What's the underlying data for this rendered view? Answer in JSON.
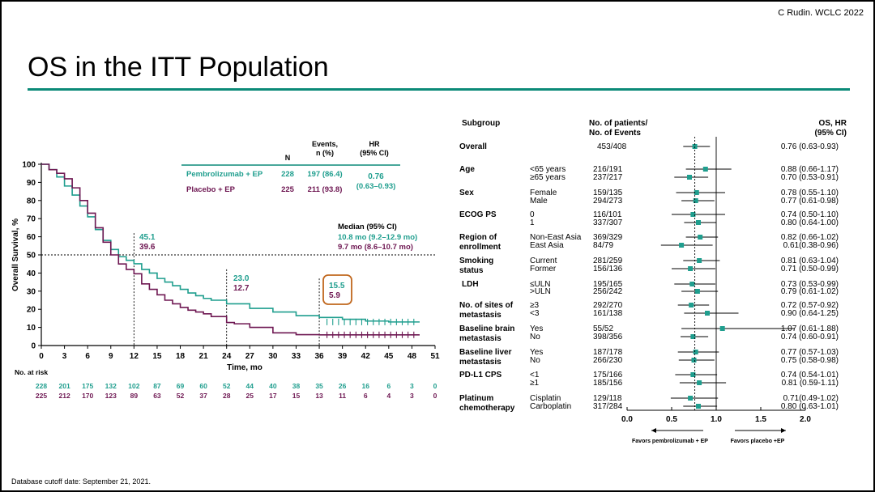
{
  "slide": {
    "credit": "C Rudin.  WCLC  2022",
    "title": "OS in the ITT Population",
    "footnote": "Database cutoff  date: September  21, 2021."
  },
  "colors": {
    "pembro": "#1f9e8e",
    "placebo": "#6e1752",
    "accent_rule": "#0b8a78",
    "callout_box": "#c0671d"
  },
  "km": {
    "ylabel": "Overall Survival, %",
    "xlabel": "Time, mo",
    "table_header": {
      "n": "N",
      "events": "Events,\nn (%)",
      "hr": "HR\n(95% CI)"
    },
    "arms": [
      {
        "name": "Pembrolizumab + EP",
        "n": "228",
        "events": "197 (86.4)",
        "color": "pembro"
      },
      {
        "name": "Placebo + EP",
        "n": "225",
        "events": "211 (93.8)",
        "color": "placebo"
      }
    ],
    "hr": "0.76",
    "hr_ci": "(0.63–0.93)",
    "median_title": "Median (95% CI)",
    "median_pembro": "10.8 mo (9.2–12.9 mo)",
    "median_placebo": "9.7 mo (8.6–10.7 mo)",
    "landmarks": [
      {
        "month": 12,
        "pembro": "45.1",
        "placebo": "39.6"
      },
      {
        "month": 24,
        "pembro": "23.0",
        "placebo": "12.7"
      },
      {
        "month": 36,
        "pembro": "15.5",
        "placebo": "5.9"
      }
    ],
    "risk_label": "No. at risk",
    "at_risk_pembro": [
      "228",
      "201",
      "175",
      "132",
      "102",
      "87",
      "69",
      "60",
      "52",
      "44",
      "40",
      "38",
      "35",
      "26",
      "16",
      "6",
      "3",
      "0"
    ],
    "at_risk_placebo": [
      "225",
      "212",
      "170",
      "123",
      "89",
      "63",
      "52",
      "37",
      "28",
      "25",
      "17",
      "15",
      "13",
      "11",
      "6",
      "4",
      "3",
      "0"
    ]
  },
  "forest": {
    "col_subgroup": "Subgroup",
    "col_n": "No. of patients/\nNo. of Events",
    "col_hr": "OS, HR\n(95% CI)",
    "favors_left": "Favors pembrolizumab + EP",
    "favors_right": "Favors placebo +EP",
    "x_ticks": [
      "0.0",
      "0.5",
      "1.0",
      "1.5",
      "2.0"
    ]
  },
  "chart_data": [
    {
      "type": "line",
      "title": "",
      "xlabel": "Time, mo",
      "ylabel": "Overall Survival, %",
      "xlim": [
        0,
        51
      ],
      "ylim": [
        0,
        100
      ],
      "x_ticks": [
        0,
        3,
        6,
        9,
        12,
        15,
        18,
        21,
        24,
        27,
        30,
        33,
        36,
        39,
        42,
        45,
        48,
        51
      ],
      "y_ticks": [
        0,
        10,
        20,
        30,
        40,
        50,
        60,
        70,
        80,
        90,
        100
      ],
      "grid": false,
      "series": [
        {
          "name": "Pembrolizumab + EP",
          "x": [
            0,
            1,
            2,
            3,
            4,
            5,
            6,
            7,
            8,
            9,
            10,
            11,
            12,
            13,
            14,
            15,
            16,
            17,
            18,
            19,
            20,
            21,
            22,
            24,
            27,
            30,
            33,
            36,
            39,
            42,
            45,
            48,
            49
          ],
          "y": [
            100,
            97,
            93,
            88,
            83,
            77,
            71,
            64,
            58,
            53,
            49,
            47,
            45.1,
            42,
            40,
            37,
            35,
            33,
            31,
            29,
            27.5,
            26,
            25,
            23,
            20.5,
            18.5,
            16.5,
            15.5,
            14.5,
            13.5,
            13,
            13,
            13
          ]
        },
        {
          "name": "Placebo + EP",
          "x": [
            0,
            1,
            2,
            3,
            4,
            5,
            6,
            7,
            8,
            9,
            10,
            11,
            12,
            13,
            14,
            15,
            16,
            17,
            18,
            19,
            20,
            21,
            22,
            24,
            25,
            27,
            30,
            33,
            36,
            39,
            42,
            45,
            48,
            49
          ],
          "y": [
            100,
            97,
            95,
            92,
            87,
            80,
            73,
            65,
            57,
            50,
            45,
            42,
            39.6,
            34,
            31,
            28,
            25,
            23,
            21,
            19.5,
            18.5,
            17.5,
            16,
            12.7,
            12,
            10,
            7,
            6,
            5.9,
            5.9,
            5.9,
            5.9,
            5.9,
            5.9
          ]
        }
      ]
    },
    {
      "type": "scatter",
      "title": "",
      "xlabel": "",
      "xlim": [
        0,
        2.0
      ],
      "reference_line": 1.0,
      "overall_hr": 0.76,
      "rows": [
        {
          "group": "Overall",
          "level": "",
          "n": "453/408",
          "hr": 0.76,
          "lo": 0.63,
          "hi": 0.93,
          "text": "0.76 (0.63-0.93)"
        },
        {
          "group": "Age",
          "level": "<65 years",
          "n": "216/191",
          "hr": 0.88,
          "lo": 0.66,
          "hi": 1.17,
          "text": "0.88 (0.66-1.17)"
        },
        {
          "group": "",
          "level": "≥65 years",
          "n": "237/217",
          "hr": 0.7,
          "lo": 0.53,
          "hi": 0.91,
          "text": "0.70 (0.53-0.91)"
        },
        {
          "group": "Sex",
          "level": "Female",
          "n": "159/135",
          "hr": 0.78,
          "lo": 0.55,
          "hi": 1.1,
          "text": "0.78 (0.55-1.10)"
        },
        {
          "group": "",
          "level": "Male",
          "n": "294/273",
          "hr": 0.77,
          "lo": 0.61,
          "hi": 0.98,
          "text": "0.77 (0.61-0.98)"
        },
        {
          "group": "ECOG PS",
          "level": "0",
          "n": "116/101",
          "hr": 0.74,
          "lo": 0.5,
          "hi": 1.1,
          "text": "0.74 (0.50-1.10)"
        },
        {
          "group": "",
          "level": "1",
          "n": "337/307",
          "hr": 0.8,
          "lo": 0.64,
          "hi": 1.0,
          "text": "0.80 (0.64-1.00)"
        },
        {
          "group": "Region of\nenrollment",
          "level": "Non-East Asia",
          "n": "369/329",
          "hr": 0.82,
          "lo": 0.66,
          "hi": 1.02,
          "text": "0.82 (0.66-1.02)"
        },
        {
          "group": "",
          "level": "East Asia",
          "n": "84/79",
          "hr": 0.61,
          "lo": 0.38,
          "hi": 0.96,
          "text": "0.61(0.38-0.96)"
        },
        {
          "group": "Smoking\nstatus",
          "level": "Current",
          "n": "281/259",
          "hr": 0.81,
          "lo": 0.63,
          "hi": 1.04,
          "text": "0.81 (0.63-1.04)"
        },
        {
          "group": "",
          "level": "Former",
          "n": "156/136",
          "hr": 0.71,
          "lo": 0.5,
          "hi": 0.99,
          "text": "0.71 (0.50-0.99)"
        },
        {
          "group": "LDH",
          "level": "≤ULN",
          "n": "195/165",
          "hr": 0.73,
          "lo": 0.53,
          "hi": 0.99,
          "text": "0.73 (0.53-0.99)"
        },
        {
          "group": "",
          "level": ">ULN",
          "n": "256/242",
          "hr": 0.79,
          "lo": 0.61,
          "hi": 1.02,
          "text": "0.79 (0.61-1.02)"
        },
        {
          "group": "No. of sites of\nmetastasis",
          "level": "≥3",
          "n": "292/270",
          "hr": 0.72,
          "lo": 0.57,
          "hi": 0.92,
          "text": "0.72 (0.57-0.92)"
        },
        {
          "group": "",
          "level": "<3",
          "n": "161/138",
          "hr": 0.9,
          "lo": 0.64,
          "hi": 1.25,
          "text": "0.90 (0.64-1.25)"
        },
        {
          "group": "Baseline brain\nmetastasis",
          "level": "Yes",
          "n": "55/52",
          "hr": 1.07,
          "lo": 0.61,
          "hi": 1.88,
          "text": "1.07 (0.61-1.88)"
        },
        {
          "group": "",
          "level": "No",
          "n": "398/356",
          "hr": 0.74,
          "lo": 0.6,
          "hi": 0.91,
          "text": "0.74 (0.60-0.91)"
        },
        {
          "group": "Baseline liver\nmetastasis",
          "level": "Yes",
          "n": "187/178",
          "hr": 0.77,
          "lo": 0.57,
          "hi": 1.03,
          "text": "0.77 (0.57-1.03)"
        },
        {
          "group": "",
          "level": "No",
          "n": "266/230",
          "hr": 0.75,
          "lo": 0.58,
          "hi": 0.98,
          "text": "0.75 (0.58-0.98)"
        },
        {
          "group": "PD-L1 CPS",
          "level": "<1",
          "n": "175/166",
          "hr": 0.74,
          "lo": 0.54,
          "hi": 1.01,
          "text": "0.74 (0.54-1.01)"
        },
        {
          "group": "",
          "level": "≥1",
          "n": "185/156",
          "hr": 0.81,
          "lo": 0.59,
          "hi": 1.11,
          "text": "0.81 (0.59-1.11)"
        },
        {
          "group": "Platinum\nchemotherapy",
          "level": "Cisplatin",
          "n": "129/118",
          "hr": 0.71,
          "lo": 0.49,
          "hi": 1.02,
          "text": "0.71(0.49-1.02)"
        },
        {
          "group": "",
          "level": "Carboplatin",
          "n": "317/284",
          "hr": 0.8,
          "lo": 0.63,
          "hi": 1.01,
          "text": "0.80 (0.63-1.01)"
        }
      ]
    }
  ]
}
